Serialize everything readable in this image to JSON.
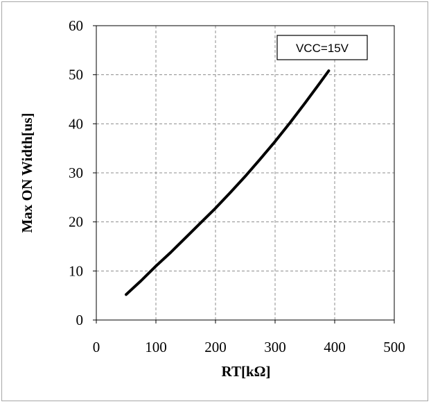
{
  "chart_data": {
    "type": "line",
    "xlabel": "RT[kΩ]",
    "ylabel": "Max ON Width[us]",
    "xlim": [
      0,
      500
    ],
    "ylim": [
      0,
      60
    ],
    "xticks": [
      0,
      100,
      200,
      300,
      400,
      500
    ],
    "yticks": [
      0,
      10,
      20,
      30,
      40,
      50,
      60
    ],
    "grid": "dashed",
    "annotation": "VCC=15V",
    "annotation_placement": "top-right",
    "line_color": "#000000",
    "series": [
      {
        "x": [
          50,
          75,
          100,
          125,
          150,
          175,
          200,
          225,
          250,
          275,
          300,
          325,
          350,
          375,
          390
        ],
        "values": [
          5.2,
          8.0,
          11.0,
          13.8,
          16.8,
          19.8,
          22.8,
          26.0,
          29.3,
          32.8,
          36.4,
          40.2,
          44.2,
          48.3,
          50.8
        ]
      }
    ]
  }
}
